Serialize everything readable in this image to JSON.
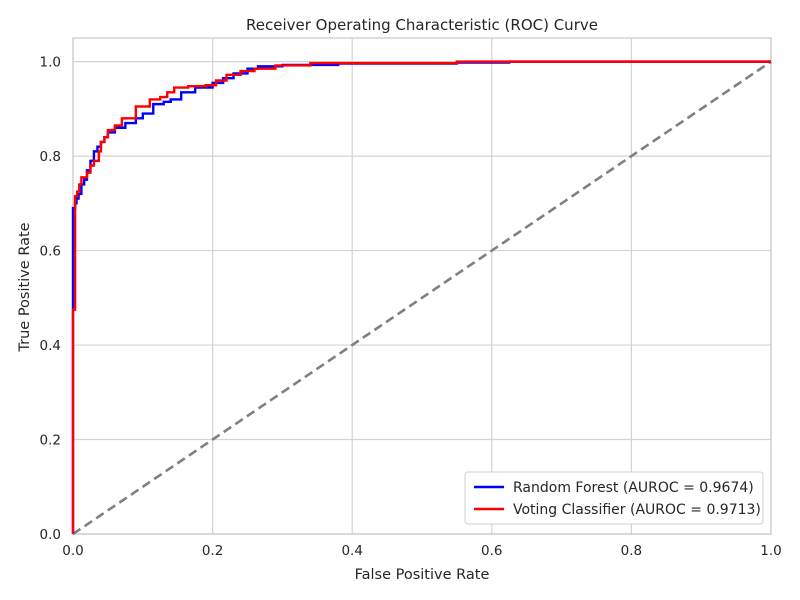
{
  "chart_data": {
    "type": "line",
    "title": "Receiver Operating Characteristic (ROC) Curve",
    "xlabel": "False Positive Rate",
    "ylabel": "True Positive Rate",
    "xlim": [
      0,
      1
    ],
    "ylim": [
      0,
      1.05
    ],
    "xticks": [
      0.0,
      0.2,
      0.4,
      0.6,
      0.8,
      1.0
    ],
    "yticks": [
      0.0,
      0.2,
      0.4,
      0.6,
      0.8,
      1.0
    ],
    "xtick_labels": [
      "0.0",
      "0.2",
      "0.4",
      "0.6",
      "0.8",
      "1.0"
    ],
    "ytick_labels": [
      "0.0",
      "0.2",
      "0.4",
      "0.6",
      "0.8",
      "1.0"
    ],
    "grid": true,
    "legend_position": "bottom-right",
    "diagonal": {
      "x": [
        0,
        1
      ],
      "y": [
        0,
        1
      ],
      "color": "#808080",
      "style": "dashed"
    },
    "series": [
      {
        "name": "Random Forest (AUROC = 0.9674)",
        "color": "#0000ff",
        "x": [
          0,
          0,
          0.003,
          0.003,
          0.005,
          0.005,
          0.008,
          0.008,
          0.012,
          0.012,
          0.016,
          0.016,
          0.02,
          0.02,
          0.025,
          0.025,
          0.03,
          0.03,
          0.035,
          0.035,
          0.04,
          0.04,
          0.045,
          0.045,
          0.05,
          0.05,
          0.06,
          0.06,
          0.075,
          0.075,
          0.09,
          0.09,
          0.1,
          0.1,
          0.115,
          0.115,
          0.13,
          0.13,
          0.14,
          0.14,
          0.155,
          0.155,
          0.175,
          0.175,
          0.2,
          0.2,
          0.215,
          0.215,
          0.23,
          0.23,
          0.25,
          0.25,
          0.265,
          0.265,
          0.3,
          0.3,
          0.38,
          0.38,
          0.55,
          0.55,
          0.625,
          0.625,
          1.0
        ],
        "y": [
          0,
          0.69,
          0.69,
          0.7,
          0.7,
          0.71,
          0.71,
          0.72,
          0.72,
          0.74,
          0.74,
          0.75,
          0.75,
          0.77,
          0.77,
          0.79,
          0.79,
          0.81,
          0.81,
          0.82,
          0.82,
          0.83,
          0.83,
          0.84,
          0.84,
          0.85,
          0.85,
          0.86,
          0.86,
          0.87,
          0.87,
          0.88,
          0.88,
          0.89,
          0.89,
          0.91,
          0.91,
          0.915,
          0.915,
          0.92,
          0.92,
          0.935,
          0.935,
          0.945,
          0.945,
          0.955,
          0.955,
          0.965,
          0.965,
          0.975,
          0.975,
          0.985,
          0.985,
          0.99,
          0.99,
          0.993,
          0.993,
          0.996,
          0.996,
          0.998,
          0.998,
          1.0,
          1.0
        ]
      },
      {
        "name": "Voting Classifier (AUROC = 0.9713)",
        "color": "#ff0000",
        "x": [
          0,
          0,
          0.003,
          0.003,
          0.006,
          0.006,
          0.009,
          0.009,
          0.012,
          0.012,
          0.02,
          0.02,
          0.025,
          0.025,
          0.03,
          0.03,
          0.037,
          0.037,
          0.04,
          0.04,
          0.045,
          0.045,
          0.05,
          0.05,
          0.06,
          0.06,
          0.07,
          0.07,
          0.09,
          0.09,
          0.11,
          0.11,
          0.125,
          0.125,
          0.135,
          0.135,
          0.145,
          0.145,
          0.165,
          0.165,
          0.19,
          0.19,
          0.205,
          0.205,
          0.22,
          0.22,
          0.24,
          0.24,
          0.26,
          0.26,
          0.29,
          0.29,
          0.34,
          0.34,
          0.55,
          0.55,
          1.0
        ],
        "y": [
          0,
          0.475,
          0.475,
          0.715,
          0.715,
          0.725,
          0.725,
          0.74,
          0.74,
          0.755,
          0.755,
          0.765,
          0.765,
          0.78,
          0.78,
          0.79,
          0.79,
          0.81,
          0.81,
          0.83,
          0.83,
          0.84,
          0.84,
          0.855,
          0.855,
          0.865,
          0.865,
          0.88,
          0.88,
          0.905,
          0.905,
          0.92,
          0.92,
          0.925,
          0.925,
          0.935,
          0.935,
          0.945,
          0.945,
          0.948,
          0.948,
          0.95,
          0.95,
          0.96,
          0.96,
          0.972,
          0.972,
          0.98,
          0.98,
          0.985,
          0.985,
          0.992,
          0.992,
          0.997,
          0.997,
          1.0,
          1.0
        ]
      }
    ]
  }
}
